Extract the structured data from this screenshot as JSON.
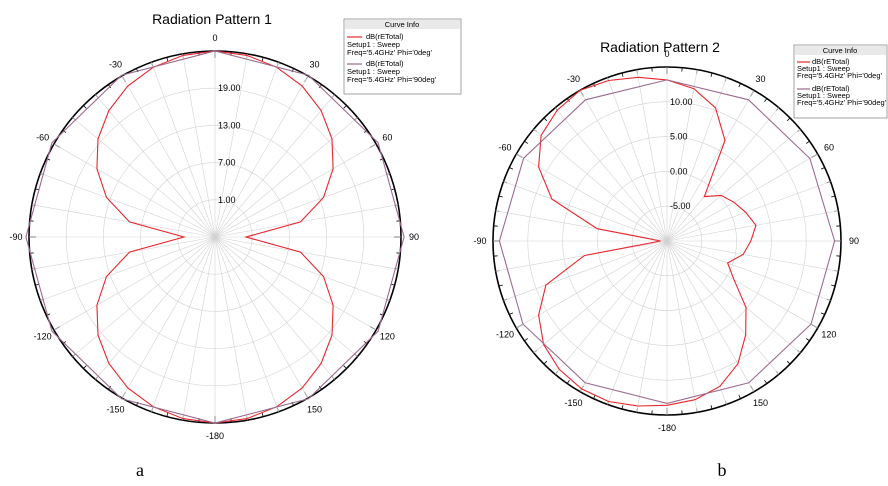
{
  "chart_data": [
    {
      "type": "polar",
      "title": "Radiation Pattern 1",
      "caption": "a",
      "angle_ticks": [
        0,
        30,
        60,
        90,
        120,
        150,
        -180,
        -150,
        -120,
        -90,
        -60,
        -30
      ],
      "radial_ticks": [
        "1.00",
        "7.00",
        "13.00",
        "19.00"
      ],
      "rlim": [
        -5,
        19
      ],
      "legend_title": "Curve Info",
      "series": [
        {
          "name": "dB(rETotal)",
          "setup": "Setup1 : Sweep",
          "freq": "Freq='5.4GHz' Phi='0deg'",
          "color": "#e8262b",
          "theta": [
            0,
            10,
            20,
            30,
            40,
            50,
            60,
            70,
            80,
            90,
            100,
            110,
            120,
            130,
            140,
            150,
            160,
            170,
            180,
            -170,
            -160,
            -150,
            -140,
            -130,
            -120,
            -110,
            -100,
            -90,
            -80,
            -70,
            -60,
            -50,
            -40,
            -30,
            -20,
            -10
          ],
          "r": [
            19,
            18.8,
            18.3,
            17.5,
            16.3,
            14.7,
            12.6,
            9.9,
            6.2,
            -1,
            6.2,
            9.9,
            12.6,
            14.7,
            16.3,
            17.5,
            18.3,
            18.8,
            19,
            18.8,
            18.3,
            17.5,
            16.3,
            14.7,
            12.6,
            9.9,
            6.2,
            -1,
            6.2,
            9.9,
            12.6,
            14.7,
            16.3,
            17.5,
            18.3,
            18.8
          ]
        },
        {
          "name": "dB(rETotal)",
          "setup": "Setup1 : Sweep",
          "freq": "Freq='5.4GHz' Phi='90deg'",
          "color": "#9b6b8e",
          "theta": [
            0,
            30,
            60,
            90,
            120,
            150,
            180,
            -150,
            -120,
            -90,
            -60,
            -30
          ],
          "r": [
            19,
            19.1,
            19.3,
            19.4,
            19.3,
            19.1,
            19,
            19.1,
            19.3,
            19.4,
            19.3,
            19.1
          ]
        }
      ]
    },
    {
      "type": "polar",
      "title": "Radiation Pattern 2",
      "caption": "b",
      "angle_ticks": [
        0,
        30,
        60,
        90,
        120,
        150,
        -180,
        -150,
        -120,
        -90,
        -60,
        -30
      ],
      "radial_ticks": [
        "-5.00",
        "0.00",
        "5.00",
        "10.00"
      ],
      "rlim": [
        -15,
        12
      ],
      "legend_title": "Curve Info",
      "series": [
        {
          "name": "dB(rETotal)",
          "setup": "Setup1 : Sweep",
          "freq": "Freq='5.4GHz' Phi='0deg'",
          "color": "#e8262b",
          "theta": [
            0,
            10,
            20,
            30,
            40,
            50,
            60,
            70,
            80,
            90,
            100,
            110,
            120,
            130,
            140,
            150,
            160,
            170,
            180,
            -170,
            -160,
            -150,
            -140,
            -130,
            -120,
            -110,
            -100,
            -90,
            -80,
            -70,
            -60,
            -50,
            -40,
            -30,
            -20,
            -10
          ],
          "r": [
            10,
            9,
            7,
            3,
            -6,
            -4,
            -3,
            -2,
            -1,
            -2,
            -3,
            -5,
            -3,
            1,
            4,
            7,
            9,
            10,
            10.5,
            11,
            11.5,
            11.5,
            11,
            10,
            8,
            5,
            -2,
            -14,
            -4,
            4,
            8,
            10.5,
            11.5,
            12,
            11.5,
            10.8
          ]
        },
        {
          "name": "dB(rETotal)",
          "setup": "Setup1 : Sweep",
          "freq": "Freq='5.4GHz' Phi='90deg'",
          "color": "#9b6b8e",
          "theta": [
            0,
            30,
            60,
            90,
            120,
            150,
            180,
            -150,
            -120,
            -90,
            -60,
            -30
          ],
          "r": [
            10,
            10.3,
            10.6,
            11,
            10.8,
            10.4,
            10.2,
            10.4,
            10.8,
            11,
            10.7,
            10.3
          ]
        }
      ]
    }
  ]
}
